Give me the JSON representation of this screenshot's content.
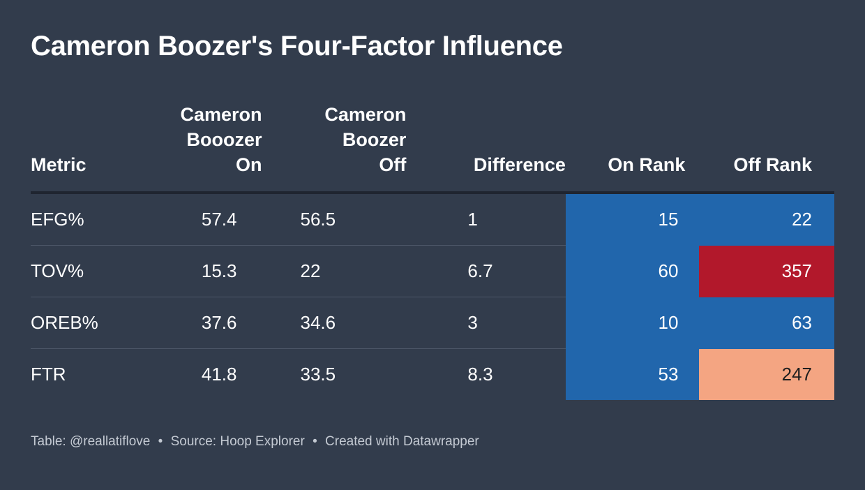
{
  "title": "Cameron Boozer's Four-Factor Influence",
  "colors": {
    "background": "#323c4c",
    "good_rank": "#2166ac",
    "bad_rank": "#b2182b",
    "mid_rank": "#f4a582",
    "text_light": "#ffffff",
    "text_dark": "#1e1e1e"
  },
  "chart_data": {
    "type": "table",
    "columns": [
      "Metric",
      "Cameron Booozer On",
      "Cameron Boozer Off",
      "Difference",
      "On Rank",
      "Off Rank"
    ],
    "column_lines": {
      "metric": [
        "Metric"
      ],
      "on": [
        "Cameron",
        "Booozer",
        "On"
      ],
      "off": [
        "Cameron",
        "Boozer",
        "Off"
      ],
      "difference": [
        "Difference"
      ],
      "on_rank": [
        "On Rank"
      ],
      "off_rank": [
        "Off Rank"
      ]
    },
    "rows": [
      {
        "metric": "EFG%",
        "on": "57.4",
        "off": "56.5",
        "difference": "1",
        "on_rank": "15",
        "off_rank": "22",
        "on_rank_color": "#2166ac",
        "off_rank_color": "#2166ac"
      },
      {
        "metric": "TOV%",
        "on": "15.3",
        "off": "22",
        "difference": "6.7",
        "on_rank": "60",
        "off_rank": "357",
        "on_rank_color": "#2166ac",
        "off_rank_color": "#b2182b"
      },
      {
        "metric": "OREB%",
        "on": "37.6",
        "off": "34.6",
        "difference": "3",
        "on_rank": "10",
        "off_rank": "63",
        "on_rank_color": "#2166ac",
        "off_rank_color": "#2166ac"
      },
      {
        "metric": "FTR",
        "on": "41.8",
        "off": "33.5",
        "difference": "8.3",
        "on_rank": "53",
        "off_rank": "247",
        "on_rank_color": "#2166ac",
        "off_rank_color": "#f4a582"
      }
    ]
  },
  "footer": {
    "table_credit": "Table: @reallatiflove",
    "source": "Source: Hoop Explorer",
    "created": "Created with Datawrapper",
    "separator": "•"
  }
}
